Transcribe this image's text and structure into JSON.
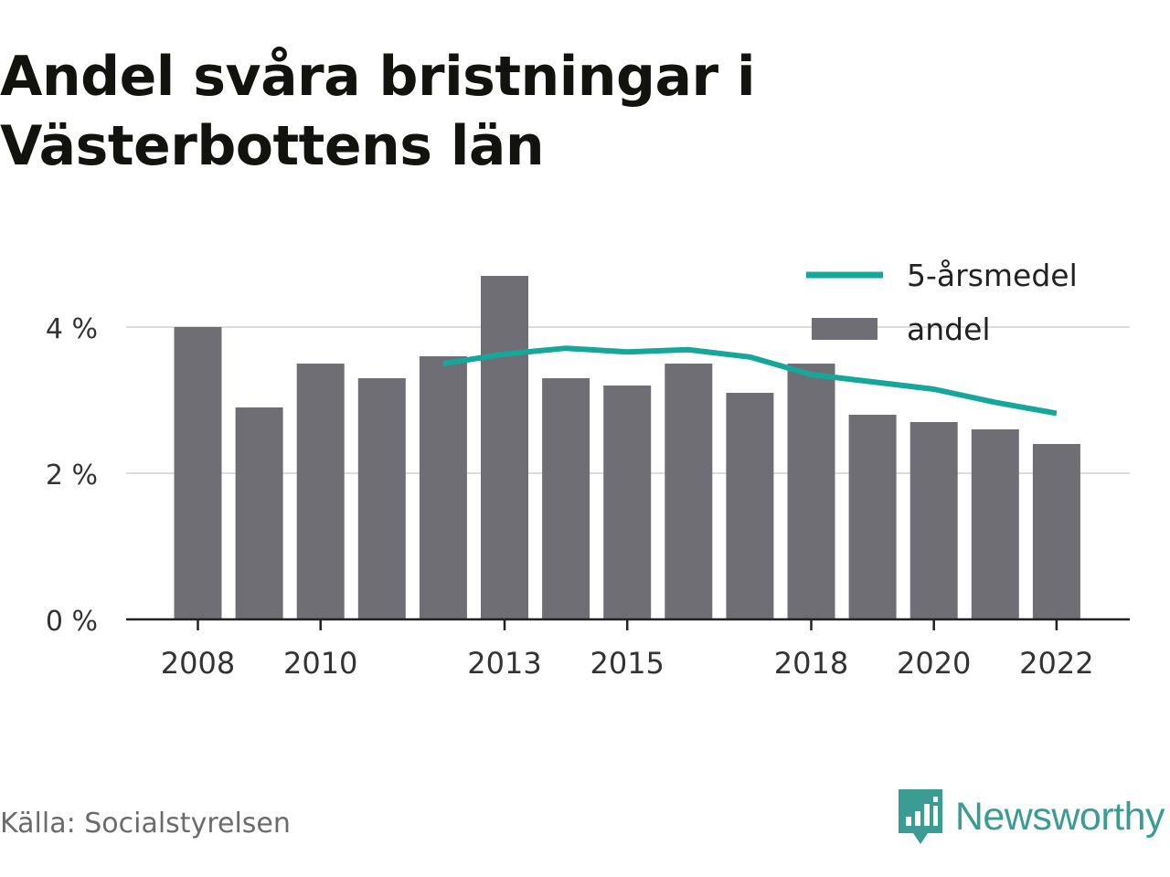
{
  "title": "Andel svåra bristningar i Västerbottens län",
  "source": "Källa: Socialstyrelsen",
  "brand": {
    "name": "Newsworthy",
    "logo_icon": "newsworthy-bar-chart-icon"
  },
  "colors": {
    "bar": "#6f6e74",
    "line": "#16a69a",
    "grid": "#dcdcdc",
    "axis": "#222222",
    "text": "#333333",
    "brand": "#3a9c93"
  },
  "chart_data": {
    "type": "bar",
    "title": "Andel svåra bristningar i Västerbottens län",
    "x": [
      2008,
      2009,
      2010,
      2011,
      2012,
      2013,
      2014,
      2015,
      2016,
      2017,
      2018,
      2019,
      2020,
      2021,
      2022
    ],
    "x_tick_labels": [
      "2008",
      "2010",
      "2013",
      "2015",
      "2018",
      "2020",
      "2022"
    ],
    "y_tick_labels": [
      "0 %",
      "2 %",
      "4 %"
    ],
    "ylim": [
      0,
      4.8
    ],
    "y_unit": "%",
    "grid": true,
    "legend_position": "top-right",
    "series": [
      {
        "name": "5-årsmedel",
        "type": "line",
        "x": [
          2012,
          2013,
          2014,
          2015,
          2016,
          2017,
          2018,
          2019,
          2020,
          2021,
          2022
        ],
        "values": [
          3.5,
          3.63,
          3.71,
          3.66,
          3.69,
          3.59,
          3.35,
          3.25,
          3.15,
          2.97,
          2.82
        ]
      },
      {
        "name": "andel",
        "type": "bar",
        "x": [
          2008,
          2009,
          2010,
          2011,
          2012,
          2013,
          2014,
          2015,
          2016,
          2017,
          2018,
          2019,
          2020,
          2021,
          2022
        ],
        "values": [
          4.0,
          2.9,
          3.5,
          3.3,
          3.6,
          4.7,
          3.3,
          3.2,
          3.5,
          3.1,
          3.5,
          2.8,
          2.7,
          2.6,
          2.4
        ]
      }
    ]
  }
}
